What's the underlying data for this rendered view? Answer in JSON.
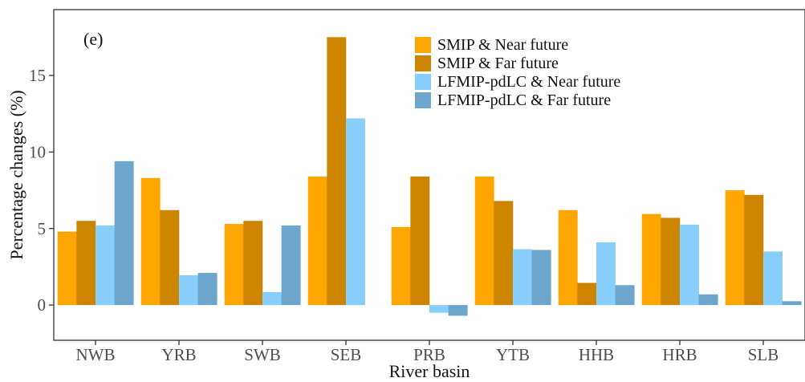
{
  "chart_data": {
    "type": "bar",
    "panel_label": "(e)",
    "xlabel": "River basin",
    "ylabel": "Percentage changes (%)",
    "ylim": [
      -2.3,
      19.3
    ],
    "yticks": [
      0,
      5,
      10,
      15
    ],
    "grid": false,
    "legend_position": "top-right",
    "categories": [
      "NWB",
      "YRB",
      "SWB",
      "SEB",
      "PRB",
      "YTB",
      "HHB",
      "HRB",
      "SLB"
    ],
    "series": [
      {
        "name": "SMIP & Near future",
        "color": "#FFA500",
        "values": [
          4.8,
          8.3,
          5.3,
          8.4,
          5.1,
          8.4,
          6.2,
          5.95,
          7.5
        ]
      },
      {
        "name": "SMIP & Far future",
        "color": "#CD8500",
        "values": [
          5.5,
          6.2,
          5.5,
          17.5,
          8.4,
          6.8,
          1.45,
          5.7,
          7.2
        ]
      },
      {
        "name": "LFMIP-pdLC & Near future",
        "color": "#87CEFA",
        "values": [
          5.2,
          1.95,
          0.85,
          12.2,
          -0.5,
          3.65,
          4.1,
          5.25,
          3.5
        ]
      },
      {
        "name": "LFMIP-pdLC & Far future",
        "color": "#6CA6CD",
        "values": [
          9.4,
          2.1,
          5.2,
          null,
          -0.7,
          3.6,
          1.3,
          0.7,
          0.25
        ]
      }
    ]
  }
}
